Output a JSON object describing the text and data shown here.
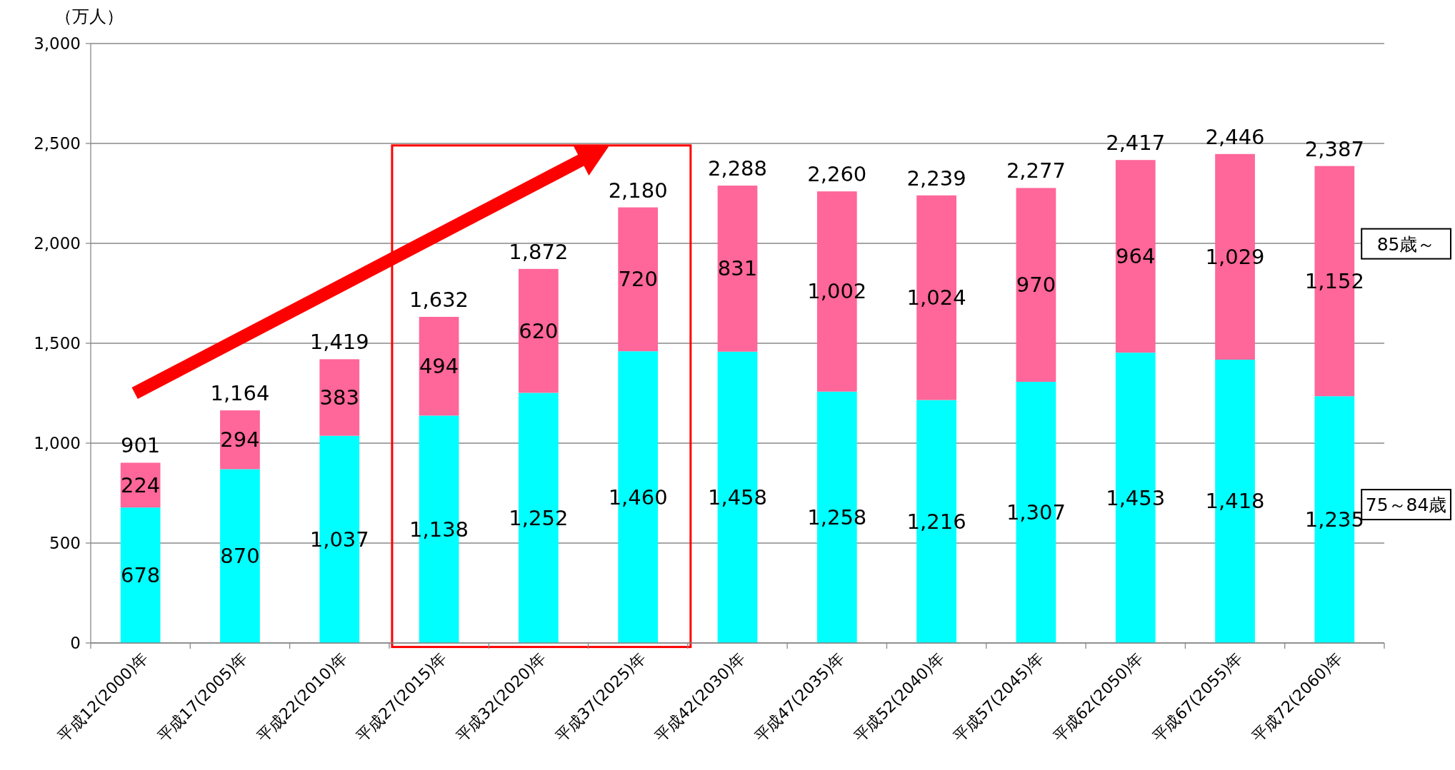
{
  "chart_data": {
    "type": "bar",
    "ylabel": "（万人）",
    "categories": [
      "平成12(2000)年",
      "平成17(2005)年",
      "平成22(2010)年",
      "平成27(2015)年",
      "平成32(2020)年",
      "平成37(2025)年",
      "平成42(2030)年",
      "平成47(2035)年",
      "平成52(2040)年",
      "平成57(2045)年",
      "平成62(2050)年",
      "平成67(2055)年",
      "平成72(2060)年"
    ],
    "series": [
      {
        "name": "75～84歳",
        "color": "#00ffff",
        "values": [
          678,
          870,
          1037,
          1138,
          1252,
          1460,
          1458,
          1258,
          1216,
          1307,
          1453,
          1418,
          1235
        ],
        "value_labels": [
          "678",
          "870",
          "1,037",
          "1,138",
          "1,252",
          "1,460",
          "1,458",
          "1,258",
          "1,216",
          "1,307",
          "1,453",
          "1,418",
          "1,235"
        ]
      },
      {
        "name": "85歳～",
        "color": "#ff6699",
        "values": [
          224,
          294,
          383,
          494,
          620,
          720,
          831,
          1002,
          1024,
          970,
          964,
          1029,
          1152
        ],
        "value_labels": [
          "224",
          "294",
          "383",
          "494",
          "620",
          "720",
          "831",
          "1,002",
          "1,024",
          "970",
          "964",
          "1,029",
          "1,152"
        ]
      }
    ],
    "totals": [
      "901",
      "1,164",
      "1,419",
      "1,632",
      "1,872",
      "2,180",
      "2,288",
      "2,260",
      "2,239",
      "2,277",
      "2,417",
      "2,446",
      "2,387"
    ],
    "stacked": true,
    "grid": "y",
    "legend": "right",
    "ylim": [
      0,
      3000
    ],
    "yticks": [
      {
        "value": 0,
        "label": "0"
      },
      {
        "value": 500,
        "label": "500"
      },
      {
        "value": 1000,
        "label": "1,000"
      },
      {
        "value": 1500,
        "label": "1,500"
      },
      {
        "value": 2000,
        "label": "2,000"
      },
      {
        "value": 2500,
        "label": "2,500"
      },
      {
        "value": 3000,
        "label": "3,000"
      }
    ]
  }
}
